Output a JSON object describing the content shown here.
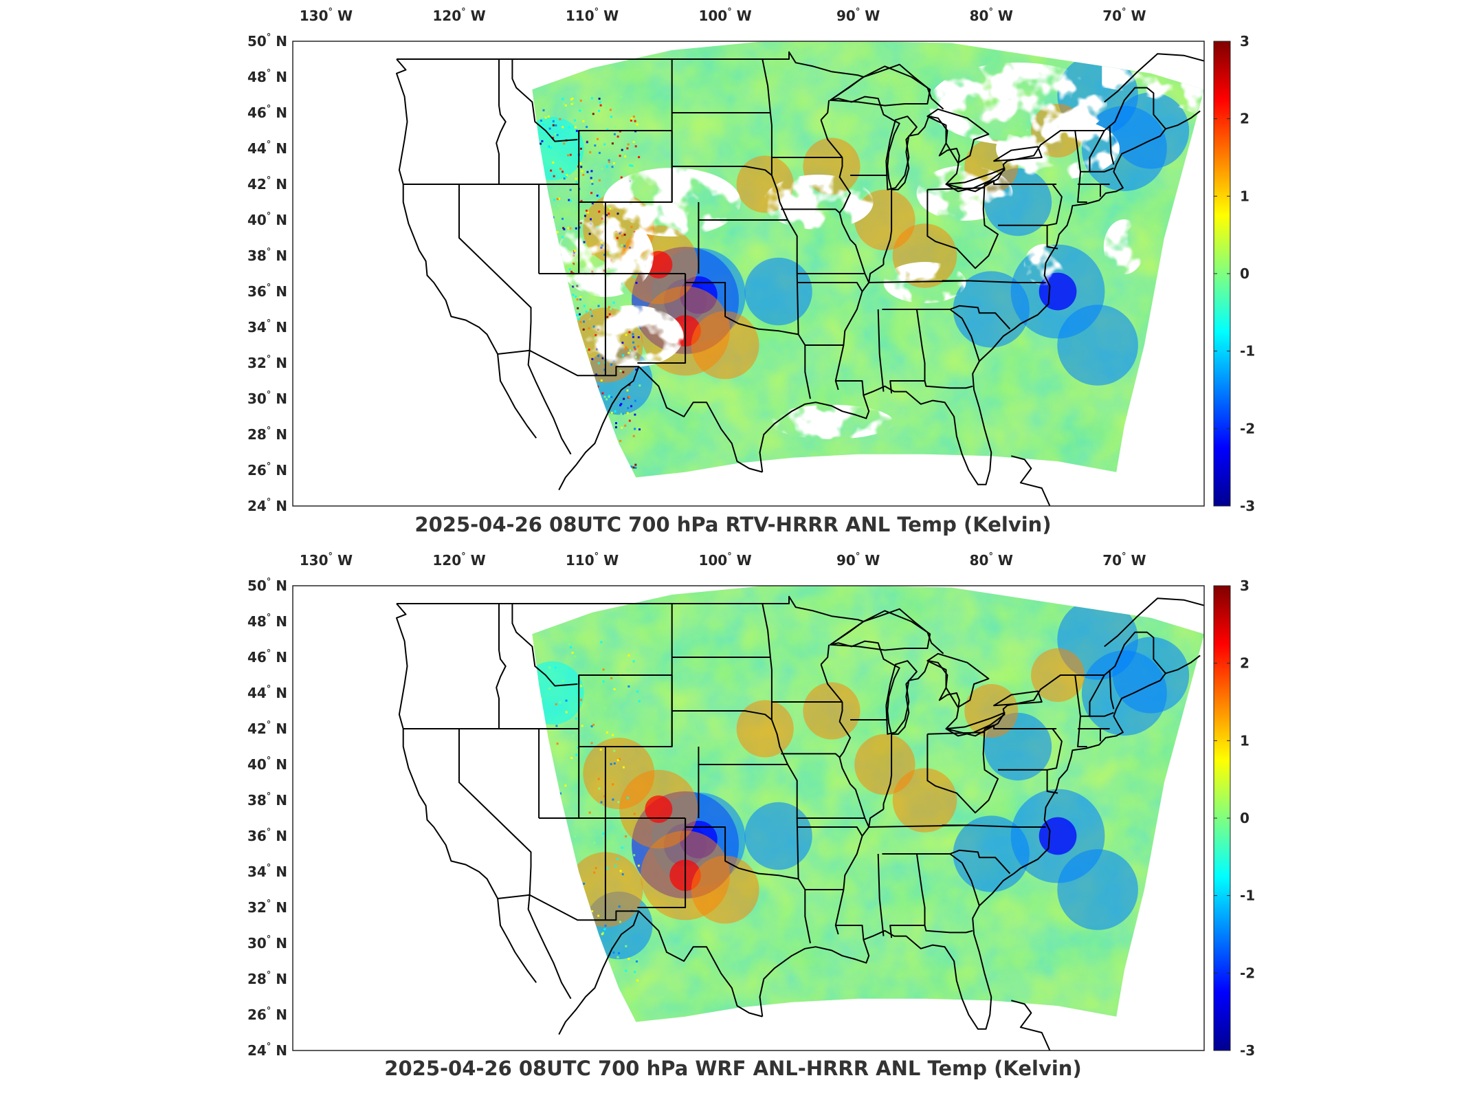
{
  "figure": {
    "colorscale": [
      "#00008f",
      "#0000ff",
      "#0080ff",
      "#00ffff",
      "#80ff80",
      "#ffff00",
      "#ff8000",
      "#ff0000",
      "#800000"
    ],
    "map_background": "#ffffff",
    "coastline_color": "#000000",
    "panels": [
      {
        "title": "2025-04-26 08UTC 700 hPa RTV-HRRR ANL Temp (Kelvin)",
        "field": "rtv_minus_hrrr",
        "has_data_gaps": true
      },
      {
        "title": "2025-04-26 08UTC 700 hPa WRF ANL-HRRR ANL Temp (Kelvin)",
        "field": "wrf_minus_hrrr",
        "has_data_gaps": false
      }
    ],
    "lon_ticks": [
      {
        "value": -130,
        "deg": "130",
        "hemi": "W"
      },
      {
        "value": -120,
        "deg": "120",
        "hemi": "W"
      },
      {
        "value": -110,
        "deg": "110",
        "hemi": "W"
      },
      {
        "value": -100,
        "deg": "100",
        "hemi": "W"
      },
      {
        "value": -90,
        "deg": "90",
        "hemi": "W"
      },
      {
        "value": -80,
        "deg": "80",
        "hemi": "W"
      },
      {
        "value": -70,
        "deg": "70",
        "hemi": "W"
      }
    ],
    "lat_ticks": [
      {
        "value": 50,
        "deg": "50",
        "hemi": "N"
      },
      {
        "value": 48,
        "deg": "48",
        "hemi": "N"
      },
      {
        "value": 46,
        "deg": "46",
        "hemi": "N"
      },
      {
        "value": 44,
        "deg": "44",
        "hemi": "N"
      },
      {
        "value": 42,
        "deg": "42",
        "hemi": "N"
      },
      {
        "value": 40,
        "deg": "40",
        "hemi": "N"
      },
      {
        "value": 38,
        "deg": "38",
        "hemi": "N"
      },
      {
        "value": 36,
        "deg": "36",
        "hemi": "N"
      },
      {
        "value": 34,
        "deg": "34",
        "hemi": "N"
      },
      {
        "value": 32,
        "deg": "32",
        "hemi": "N"
      },
      {
        "value": 30,
        "deg": "30",
        "hemi": "N"
      },
      {
        "value": 28,
        "deg": "28",
        "hemi": "N"
      },
      {
        "value": 26,
        "deg": "26",
        "hemi": "N"
      },
      {
        "value": 24,
        "deg": "24",
        "hemi": "N"
      }
    ],
    "colorbar": {
      "min": -3,
      "max": 3,
      "ticks": [
        {
          "value": 3,
          "label": "3"
        },
        {
          "value": 2,
          "label": "2"
        },
        {
          "value": 1,
          "label": "1"
        },
        {
          "value": 0,
          "label": "0"
        },
        {
          "value": -1,
          "label": "-1"
        },
        {
          "value": -2,
          "label": "-2"
        },
        {
          "value": -3,
          "label": "-3"
        }
      ]
    }
  }
}
